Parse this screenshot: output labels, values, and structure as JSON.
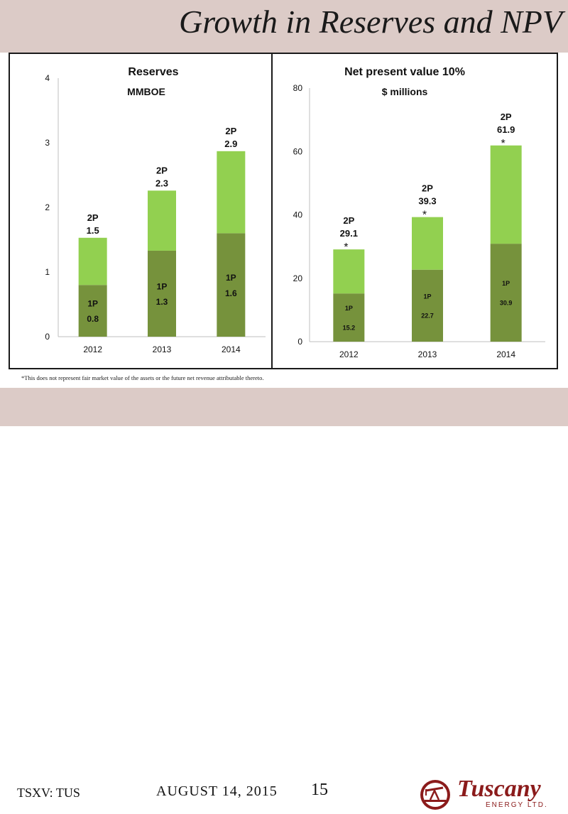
{
  "slide": {
    "title": "Growth in Reserves and NPV",
    "footnote": "*This does not represent fair market value of the assets or the future net revenue attributable thereto.",
    "ticker": "TSXV: TUS",
    "date": "AUGUST 14, 2015",
    "page_number": "15",
    "logo": {
      "name": "Tuscany",
      "subtitle": "ENERGY LTD."
    }
  },
  "colors": {
    "header_bg": "#dccbc7",
    "bar_1p": "#76923c",
    "bar_2p": "#92d050",
    "logo_red": "#8b1b1b"
  },
  "chart_data": [
    {
      "type": "bar",
      "stacked": true,
      "title": "Reserves",
      "subtitle": "MMBOE",
      "categories": [
        "2012",
        "2013",
        "2014"
      ],
      "ylim": [
        0,
        4
      ],
      "yticks": [
        "0",
        "1",
        "2",
        "3",
        "4"
      ],
      "series": [
        {
          "name": "1P",
          "values": [
            0.8,
            1.33,
            1.6
          ]
        },
        {
          "name": "2P",
          "values": [
            0.73,
            0.93,
            1.27
          ]
        }
      ],
      "labels_1p": [
        {
          "code": "1P",
          "value": "0.8"
        },
        {
          "code": "1P",
          "value": "1.3"
        },
        {
          "code": "1P",
          "value": "1.6"
        }
      ],
      "labels_2p": [
        {
          "code": "2P",
          "value": "1.5"
        },
        {
          "code": "2P",
          "value": "2.3"
        },
        {
          "code": "2P",
          "value": "2.9"
        }
      ],
      "stars": [
        false,
        false,
        false
      ]
    },
    {
      "type": "bar",
      "stacked": true,
      "title": "Net present value 10%",
      "subtitle": "$ millions",
      "categories": [
        "2012",
        "2013",
        "2014"
      ],
      "ylim": [
        0,
        80
      ],
      "yticks": [
        "0",
        "20",
        "40",
        "60",
        "80"
      ],
      "series": [
        {
          "name": "1P",
          "values": [
            15.2,
            22.7,
            30.9
          ]
        },
        {
          "name": "2P",
          "values": [
            13.9,
            16.6,
            31.0
          ]
        }
      ],
      "labels_1p": [
        {
          "code": "1P",
          "value": "15.2"
        },
        {
          "code": "1P",
          "value": "22.7"
        },
        {
          "code": "1P",
          "value": "30.9"
        }
      ],
      "labels_2p": [
        {
          "code": "2P",
          "value": "29.1"
        },
        {
          "code": "2P",
          "value": "39.3"
        },
        {
          "code": "2P",
          "value": "61.9"
        }
      ],
      "stars": [
        true,
        true,
        true
      ],
      "star_symbol": "*"
    }
  ]
}
